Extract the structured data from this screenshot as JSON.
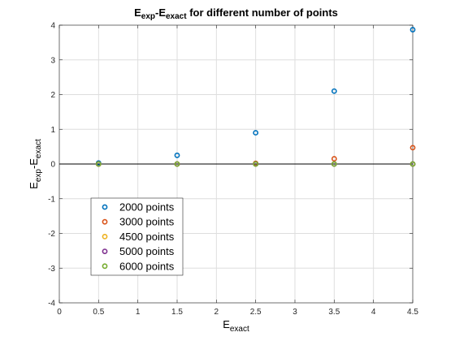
{
  "chart_data": {
    "type": "scatter",
    "title": {
      "main": "E",
      "sub1": "exp",
      "mid": "-E",
      "sub2": "exact",
      "tail": " for different number of points"
    },
    "xlabel": {
      "main": "E",
      "sub": "exact"
    },
    "ylabel": {
      "main": "E",
      "sub1": "exp",
      "mid": "-E",
      "sub2": "exact"
    },
    "xlim": [
      0,
      4.5
    ],
    "ylim": [
      -4,
      4
    ],
    "xticks": [
      0,
      0.5,
      1,
      1.5,
      2,
      2.5,
      3,
      3.5,
      4,
      4.5
    ],
    "xtick_labels": [
      "0",
      "0.5",
      "1",
      "1.5",
      "2",
      "2.5",
      "3",
      "3.5",
      "4",
      "4.5"
    ],
    "yticks": [
      -4,
      -3,
      -2,
      -1,
      0,
      1,
      2,
      3,
      4
    ],
    "ytick_labels": [
      "-4",
      "-3",
      "-2",
      "-1",
      "0",
      "1",
      "2",
      "3",
      "4"
    ],
    "grid": true,
    "zero_line": true,
    "legend_position": "bottom-left",
    "x": [
      0.5,
      1.5,
      2.5,
      3.5,
      4.5
    ],
    "series": [
      {
        "name": "2000 points",
        "color": "#0072BD",
        "values": [
          0.03,
          0.25,
          0.9,
          2.1,
          3.87
        ]
      },
      {
        "name": "3000 points",
        "color": "#D95319",
        "values": [
          0.0,
          0.0,
          0.02,
          0.15,
          0.47
        ]
      },
      {
        "name": "4500 points",
        "color": "#EDB120",
        "values": [
          0.0,
          0.0,
          0.0,
          0.0,
          0.0
        ]
      },
      {
        "name": "5000 points",
        "color": "#7E2F8E",
        "values": [
          0.0,
          0.0,
          0.0,
          0.0,
          0.0
        ]
      },
      {
        "name": "6000 points",
        "color": "#77AC30",
        "values": [
          0.0,
          0.0,
          0.0,
          0.0,
          0.0
        ]
      }
    ]
  }
}
